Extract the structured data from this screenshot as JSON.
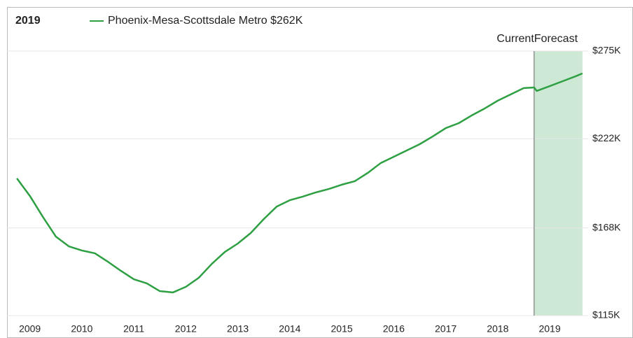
{
  "chart_data": {
    "type": "line",
    "title": "2019",
    "series": [
      {
        "name": "Phoenix-Mesa-Scottsdale Metro $262K",
        "color": "#2ea043",
        "x": [
          2008.75,
          2009.0,
          2009.25,
          2009.5,
          2009.75,
          2010.0,
          2010.25,
          2010.5,
          2010.75,
          2011.0,
          2011.25,
          2011.5,
          2011.75,
          2012.0,
          2012.25,
          2012.5,
          2012.75,
          2013.0,
          2013.25,
          2013.5,
          2013.75,
          2014.0,
          2014.25,
          2014.5,
          2014.75,
          2015.0,
          2015.25,
          2015.5,
          2015.75,
          2016.0,
          2016.25,
          2016.5,
          2016.75,
          2017.0,
          2017.25,
          2017.5,
          2017.75,
          2018.0,
          2018.25,
          2018.5,
          2018.7,
          2018.75,
          2019.0,
          2019.25,
          2019.5,
          2019.63
        ],
        "values": [
          198000,
          187400,
          174700,
          162800,
          156900,
          154400,
          152700,
          147600,
          142100,
          137000,
          134500,
          129800,
          129000,
          132400,
          137900,
          146300,
          153500,
          158600,
          165000,
          173400,
          181000,
          184800,
          187000,
          189500,
          191600,
          194200,
          196300,
          201300,
          207300,
          211100,
          214900,
          218700,
          223400,
          228400,
          231400,
          236100,
          240300,
          245000,
          248800,
          252600,
          253000,
          250900,
          253800,
          256800,
          259800,
          261500
        ]
      }
    ],
    "xlim": [
      2008.56,
      2019.74
    ],
    "xticks": [
      2009,
      2010,
      2011,
      2012,
      2013,
      2014,
      2015,
      2016,
      2017,
      2018,
      2019
    ],
    "ylim": [
      115000,
      275000
    ],
    "yticks": [
      {
        "value": 115000,
        "label": "$115K"
      },
      {
        "value": 168000,
        "label": "$168K"
      },
      {
        "value": 222000,
        "label": "$222K"
      },
      {
        "value": 275000,
        "label": "$275K"
      }
    ],
    "grid": true,
    "forecast_range": [
      2018.7,
      2019.63
    ],
    "current_label": "Current",
    "forecast_label": "Forecast",
    "forecast_color": "#cde8d4"
  }
}
